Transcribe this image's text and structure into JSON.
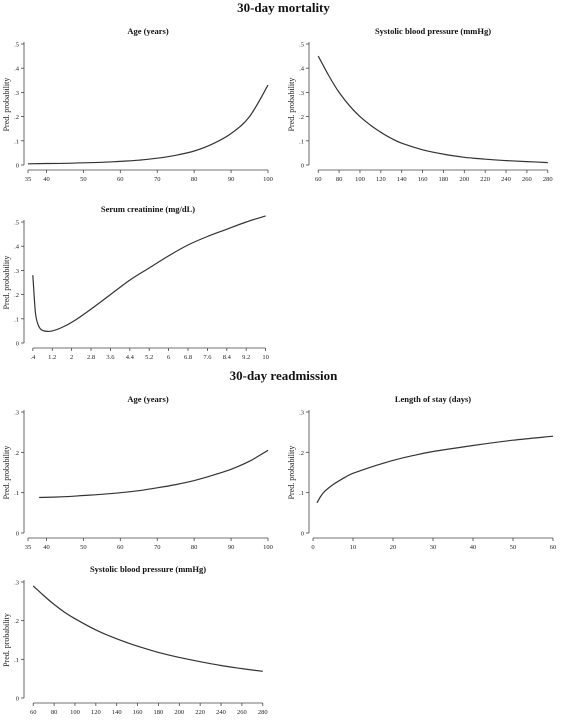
{
  "sections": {
    "mortality_title": "30-day mortality",
    "readmission_title": "30-day readmission"
  },
  "style": {
    "line_color": "#333333",
    "axis_color": "#444444"
  },
  "chart_data": [
    {
      "id": "mort-age",
      "type": "line",
      "title": "Age (years)",
      "ylabel": "Pred. probability",
      "xlim": [
        35,
        100
      ],
      "ylim": [
        0,
        0.5
      ],
      "xticks": [
        35,
        40,
        50,
        60,
        70,
        80,
        90,
        100
      ],
      "xticklabels": [
        "35",
        "40",
        "50",
        "60",
        "70",
        "80",
        "90",
        "100"
      ],
      "yticks": [
        0,
        0.1,
        0.2,
        0.3,
        0.4,
        0.5
      ],
      "yticklabels": [
        "0",
        ".1",
        ".2",
        ".3",
        ".4",
        ".5"
      ],
      "x": [
        35,
        40,
        45,
        50,
        55,
        60,
        65,
        70,
        75,
        80,
        85,
        90,
        95,
        100
      ],
      "y": [
        0.005,
        0.006,
        0.007,
        0.009,
        0.011,
        0.015,
        0.02,
        0.028,
        0.04,
        0.058,
        0.087,
        0.13,
        0.2,
        0.33
      ]
    },
    {
      "id": "mort-sbp",
      "type": "line",
      "title": "Systolic blood pressure (mmHg)",
      "ylabel": "Pred. probability",
      "xlim": [
        55,
        285
      ],
      "ylim": [
        0,
        0.5
      ],
      "xticks": [
        60,
        80,
        100,
        120,
        140,
        160,
        180,
        200,
        220,
        240,
        260,
        280
      ],
      "xticklabels": [
        "60",
        "80",
        "100",
        "120",
        "140",
        "160",
        "180",
        "200",
        "220",
        "240",
        "260",
        "280"
      ],
      "yticks": [
        0,
        0.1,
        0.2,
        0.3,
        0.4,
        0.5
      ],
      "yticklabels": [
        "0",
        ".1",
        ".2",
        ".3",
        ".4",
        ".5"
      ],
      "x": [
        60,
        70,
        80,
        90,
        100,
        110,
        120,
        130,
        140,
        160,
        180,
        200,
        220,
        240,
        260,
        280
      ],
      "y": [
        0.45,
        0.37,
        0.3,
        0.245,
        0.2,
        0.165,
        0.135,
        0.11,
        0.09,
        0.063,
        0.045,
        0.032,
        0.024,
        0.018,
        0.014,
        0.01
      ]
    },
    {
      "id": "mort-creat",
      "type": "line",
      "title": "Serum creatinine (mg/dL)",
      "ylabel": "Pred. probability",
      "xlim": [
        0.2,
        10.1
      ],
      "ylim": [
        0,
        0.5
      ],
      "xticks": [
        0.4,
        1.2,
        2,
        2.8,
        3.6,
        4.4,
        5.2,
        6,
        6.8,
        7.6,
        8.4,
        9.2,
        10
      ],
      "xticklabels": [
        ".4",
        "1.2",
        "2",
        "2.8",
        "3.6",
        "4.4",
        "5.2",
        "6",
        "6.8",
        "7.6",
        "8.4",
        "9.2",
        "10"
      ],
      "yticks": [
        0,
        0.1,
        0.2,
        0.3,
        0.4,
        0.5
      ],
      "yticklabels": [
        "0",
        ".1",
        ".2",
        ".3",
        ".4",
        ".5"
      ],
      "x": [
        0.4,
        0.5,
        0.6,
        0.7,
        0.8,
        1.0,
        1.2,
        1.5,
        2.0,
        2.8,
        3.6,
        4.4,
        5.2,
        6.0,
        6.8,
        7.6,
        8.4,
        9.2,
        10.0
      ],
      "y": [
        0.28,
        0.13,
        0.08,
        0.06,
        0.052,
        0.048,
        0.05,
        0.06,
        0.085,
        0.14,
        0.2,
        0.26,
        0.31,
        0.36,
        0.405,
        0.44,
        0.47,
        0.5,
        0.525
      ]
    },
    {
      "id": "readm-age",
      "type": "line",
      "title": "Age (years)",
      "ylabel": "Pred. probability",
      "xlim": [
        35,
        100
      ],
      "ylim": [
        0,
        0.3
      ],
      "xticks": [
        35,
        40,
        50,
        60,
        70,
        80,
        90,
        100
      ],
      "xticklabels": [
        "35",
        "40",
        "50",
        "60",
        "70",
        "80",
        "90",
        "100"
      ],
      "yticks": [
        0,
        0.1,
        0.2,
        0.3
      ],
      "yticklabels": [
        "0",
        ".1",
        ".2",
        ".3"
      ],
      "x": [
        38,
        45,
        50,
        55,
        60,
        65,
        70,
        75,
        80,
        85,
        90,
        95,
        100
      ],
      "y": [
        0.088,
        0.09,
        0.093,
        0.096,
        0.1,
        0.105,
        0.112,
        0.12,
        0.13,
        0.143,
        0.158,
        0.178,
        0.205
      ]
    },
    {
      "id": "readm-los",
      "type": "line",
      "title": "Length of stay (days)",
      "ylabel": "Pred. probability",
      "xlim": [
        0,
        60
      ],
      "ylim": [
        0,
        0.3
      ],
      "xticks": [
        0,
        10,
        20,
        30,
        40,
        50,
        60
      ],
      "xticklabels": [
        "0",
        "10",
        "20",
        "30",
        "40",
        "50",
        "60"
      ],
      "yticks": [
        0,
        0.1,
        0.2,
        0.3
      ],
      "yticklabels": [
        "0",
        ".1",
        ".2",
        ".3"
      ],
      "x": [
        1,
        2,
        3,
        5,
        8,
        10,
        15,
        20,
        25,
        30,
        40,
        50,
        60
      ],
      "y": [
        0.075,
        0.092,
        0.104,
        0.12,
        0.138,
        0.148,
        0.165,
        0.18,
        0.192,
        0.202,
        0.217,
        0.23,
        0.24
      ]
    },
    {
      "id": "readm-sbp",
      "type": "line",
      "title": "Systolic blood pressure (mmHg)",
      "ylabel": "Pred. probability",
      "xlim": [
        55,
        285
      ],
      "ylim": [
        0,
        0.3
      ],
      "xticks": [
        60,
        80,
        100,
        120,
        140,
        160,
        180,
        200,
        220,
        240,
        260,
        280
      ],
      "xticklabels": [
        "60",
        "80",
        "100",
        "120",
        "140",
        "160",
        "180",
        "200",
        "220",
        "240",
        "260",
        "280"
      ],
      "yticks": [
        0,
        0.1,
        0.2,
        0.3
      ],
      "yticklabels": [
        "0",
        ".1",
        ".2",
        ".3"
      ],
      "x": [
        60,
        70,
        80,
        90,
        100,
        120,
        140,
        160,
        180,
        200,
        220,
        240,
        260,
        280
      ],
      "y": [
        0.29,
        0.265,
        0.242,
        0.222,
        0.205,
        0.176,
        0.153,
        0.134,
        0.118,
        0.105,
        0.094,
        0.084,
        0.076,
        0.069
      ]
    }
  ]
}
